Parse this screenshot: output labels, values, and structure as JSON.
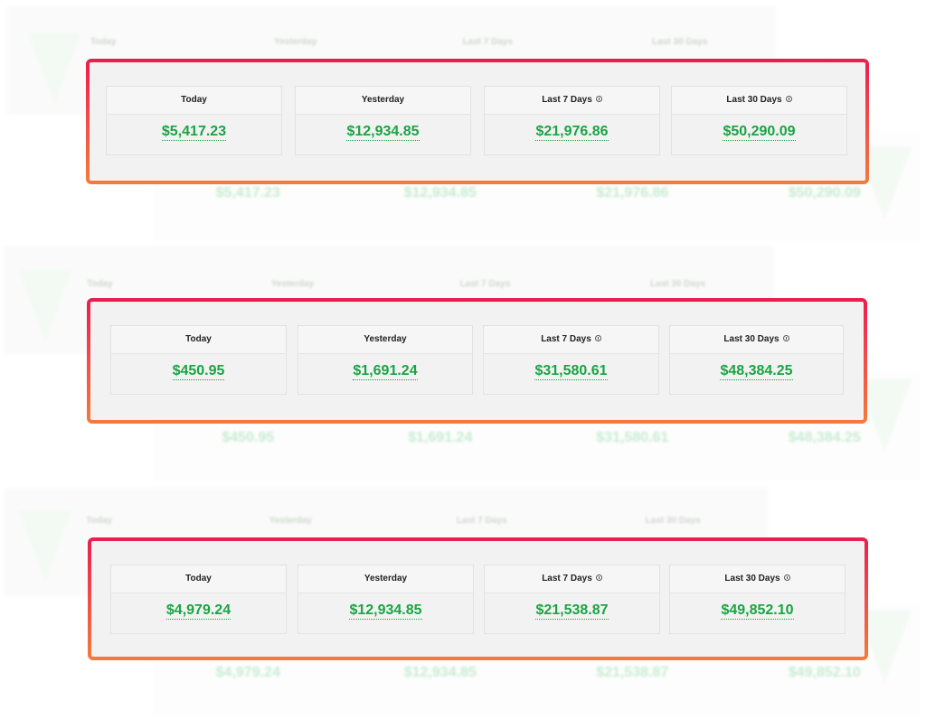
{
  "labels": {
    "today": "Today",
    "yesterday": "Yesterday",
    "last7": "Last 7 Days",
    "last30": "Last 30 Days"
  },
  "colors": {
    "accent_green": "#1aa443",
    "frame_top": "#ec1c4d",
    "frame_bottom": "#f47b3a",
    "card_bg": "#f2f2f2"
  },
  "icons": {
    "period_info": "info-circle-icon"
  },
  "panels": [
    {
      "today": "$5,417.23",
      "yesterday": "$12,934.85",
      "last7": "$21,976.86",
      "last30": "$50,290.09"
    },
    {
      "today": "$450.95",
      "yesterday": "$1,691.24",
      "last7": "$31,580.61",
      "last30": "$48,384.25"
    },
    {
      "today": "$4,979.24",
      "yesterday": "$12,934.85",
      "last7": "$21,538.87",
      "last30": "$49,852.10"
    }
  ]
}
